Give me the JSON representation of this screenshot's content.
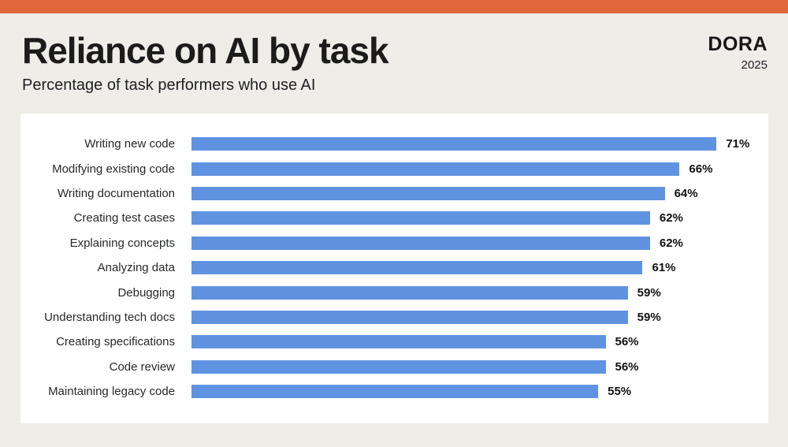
{
  "header": {
    "title": "Reliance on AI by task",
    "subtitle": "Percentage of task performers who use AI",
    "logo": "DORA",
    "year": "2025"
  },
  "colors": {
    "accent_orange": "#E0663C",
    "background": "#EFEDE8",
    "bar_blue": "#5F93E1",
    "panel_white": "#FFFFFF"
  },
  "chart_data": {
    "type": "bar",
    "orientation": "horizontal",
    "title": "Reliance on AI by task",
    "subtitle": "Percentage of task performers who use AI",
    "categories": [
      "Writing new code",
      "Modifying existing code",
      "Writing documentation",
      "Creating test cases",
      "Explaining concepts",
      "Analyzing data",
      "Debugging",
      "Understanding tech docs",
      "Creating specifications",
      "Code review",
      "Maintaining legacy code"
    ],
    "values": [
      71,
      66,
      64,
      62,
      62,
      61,
      59,
      59,
      56,
      56,
      55
    ],
    "value_labels": [
      "71%",
      "66%",
      "64%",
      "62%",
      "62%",
      "61%",
      "59%",
      "59%",
      "56%",
      "56%",
      "55%"
    ],
    "unit": "%",
    "xlim": [
      0,
      78
    ],
    "grid": false,
    "legend": false
  }
}
